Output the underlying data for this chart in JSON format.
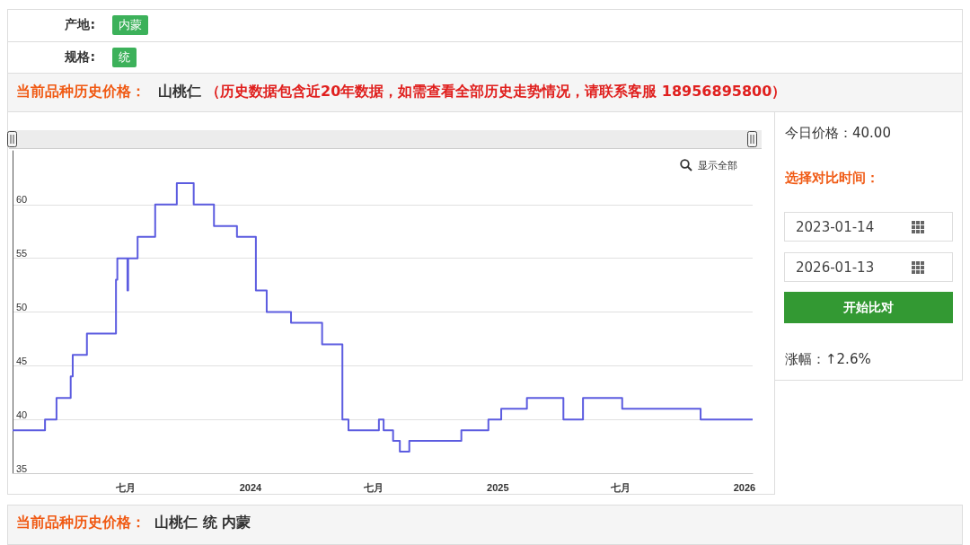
{
  "chart_data": {
    "type": "step",
    "title": "当前品种历史价格：",
    "subtitle": "山桃仁",
    "annotations": [
      "（历史数据包含近20年数据，如需查看全部历史走势情况，请联系客服 18956895800）",
      "产地:",
      "内蒙",
      "规格:",
      "统",
      "显示全部",
      "今日价格：40.00",
      "选择对比时间：",
      "2023-01-14",
      "2026-01-13",
      "开始比对",
      "涨幅：↑2.6%",
      "当前品种历史价格：",
      "山桃仁 统 内蒙"
    ],
    "x": [
      "2023-01-14",
      "2023-03-03",
      "2023-03-20",
      "2023-04-10",
      "2023-04-13",
      "2023-05-04",
      "2023-06-16",
      "2023-06-18",
      "2023-07-03",
      "2023-07-04",
      "2023-07-18",
      "2023-08-13",
      "2023-09-14",
      "2023-10-09",
      "2023-11-08",
      "2023-12-12",
      "2024-01-09",
      "2024-01-25",
      "2024-03-01",
      "2024-04-16",
      "2024-05-16",
      "2024-05-25",
      "2024-07-09",
      "2024-07-16",
      "2024-07-30",
      "2024-08-09",
      "2024-08-23",
      "2024-11-08",
      "2024-12-18",
      "2025-01-06",
      "2025-02-13",
      "2025-04-08",
      "2025-05-07",
      "2025-07-04",
      "2025-10-28",
      "2026-01-13"
    ],
    "values": [
      39,
      40,
      42,
      44,
      46,
      48,
      53,
      55,
      52,
      55,
      57,
      60,
      62,
      60,
      58,
      57,
      52,
      50,
      49,
      47,
      40,
      39,
      40,
      39,
      38,
      37,
      38,
      39,
      40,
      41,
      42,
      40,
      42,
      41,
      40,
      40
    ],
    "color": "#5c5ce0",
    "xlim": [
      "2023-01-14",
      "2026-01-13"
    ],
    "xticks": [
      {
        "value": "2023-07-01",
        "label": "七月"
      },
      {
        "value": "2024-01-01",
        "label": "2024"
      },
      {
        "value": "2024-07-01",
        "label": "七月"
      },
      {
        "value": "2025-01-01",
        "label": "2025"
      },
      {
        "value": "2025-07-01",
        "label": "七月"
      },
      {
        "value": "2026-01-01",
        "label": "2026"
      }
    ],
    "ylim": [
      35,
      65
    ],
    "yticks": [
      35,
      40,
      45,
      50,
      55,
      60
    ],
    "grid": "y"
  }
}
